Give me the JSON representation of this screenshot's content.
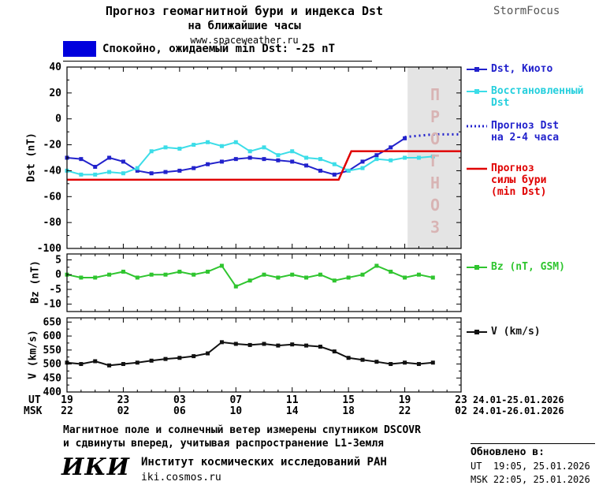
{
  "header": {
    "title_line1": "Прогноз геомагнитной бури и индекса Dst",
    "title_line2": "на ближайшие часы",
    "site": "www.spaceweather.ru",
    "brand": "StormFocus"
  },
  "status_legend": {
    "label": "Спокойно, ожидаемый min Dst: -25 nT",
    "color": "#0000dd"
  },
  "legend": {
    "dst_kyoto": "Dst, Киото",
    "recovered": "Восстановленный\nDst",
    "forecast_dst": "Прогноз Dst\nна 2-4 часа",
    "forecast_storm": "Прогноз\nсилы бури\n(min Dst)",
    "bz": "Bz (nT, GSM)",
    "v": "V (km/s)"
  },
  "axes": {
    "ut_label": "UT",
    "msk_label": "MSK",
    "ut_ticks": [
      "19",
      "23",
      "03",
      "07",
      "11",
      "15",
      "19",
      "23"
    ],
    "msk_ticks": [
      "22",
      "02",
      "06",
      "10",
      "14",
      "18",
      "22",
      "02"
    ],
    "ut_dates": "24.01-25.01.2026",
    "msk_dates": "24.01-26.01.2026"
  },
  "footer": {
    "note_line1": "Магнитное поле и солнечный ветер измерены спутником DSCOVR",
    "note_line2": "и сдвинуты вперед, учитывая распространение L1-Земля",
    "updated_label": "Обновлено в:",
    "updated_ut": "UT  19:05, 25.01.2026",
    "updated_msk": "MSK 22:05, 25.01.2026",
    "logo": "ИКИ",
    "institute": "Институт космических исследований РАН",
    "site": "iki.cosmos.ru"
  },
  "chart_data": [
    {
      "type": "line",
      "ylabel": "Dst (nT)",
      "ylim": [
        -100,
        40
      ],
      "yticks": [
        40,
        20,
        0,
        -20,
        -40,
        -60,
        -80,
        -100
      ],
      "xlim": [
        0,
        28
      ],
      "x_tick_step_hours": 4,
      "forecast_band": {
        "x0": 24.2,
        "x1": 28,
        "label": "ПРОГНОЗ",
        "fill": "#e4e4e4",
        "label_color": "#d8b4b4"
      },
      "series": [
        {
          "name": "Dst, Киото",
          "color": "#2222cc",
          "marker": "square",
          "line": "solid",
          "width": 2,
          "x": [
            0,
            1,
            2,
            3,
            4,
            5,
            6,
            7,
            8,
            9,
            10,
            11,
            12,
            13,
            14,
            15,
            16,
            17,
            18,
            19,
            20,
            21,
            22,
            23,
            24
          ],
          "y": [
            -30,
            -31,
            -37,
            -30,
            -33,
            -40,
            -42,
            -41,
            -40,
            -38,
            -35,
            -33,
            -31,
            -30,
            -31,
            -32,
            -33,
            -36,
            -40,
            -43,
            -40,
            -33,
            -28,
            -22,
            -15
          ]
        },
        {
          "name": "Восстановленный Dst",
          "color": "#3cdde8",
          "marker": "square",
          "line": "solid",
          "width": 2,
          "x": [
            0,
            1,
            2,
            3,
            4,
            5,
            6,
            7,
            8,
            9,
            10,
            11,
            12,
            13,
            14,
            15,
            16,
            17,
            18,
            19,
            20,
            21,
            22,
            23,
            24,
            25,
            26
          ],
          "y": [
            -40,
            -43,
            -43,
            -41,
            -42,
            -38,
            -25,
            -22,
            -23,
            -20,
            -18,
            -21,
            -18,
            -25,
            -22,
            -28,
            -25,
            -30,
            -31,
            -35,
            -40,
            -38,
            -31,
            -32,
            -30,
            -30,
            -29
          ]
        },
        {
          "name": "Прогноз Dst на 2-4 часа",
          "color": "#2222cc",
          "marker": "none",
          "line": "dotted",
          "width": 3,
          "x": [
            24,
            25,
            26,
            27,
            28
          ],
          "y": [
            -14,
            -13,
            -12,
            -12,
            -12
          ]
        },
        {
          "name": "Прогноз силы бури (min Dst)",
          "color": "#e00000",
          "marker": "none",
          "line": "solid",
          "width": 2.5,
          "x": [
            0,
            19.3,
            20.2,
            28
          ],
          "y": [
            -47,
            -47,
            -25,
            -25
          ]
        }
      ]
    },
    {
      "type": "line",
      "ylabel": "Bz (nT)",
      "ylim": [
        -12.5,
        7
      ],
      "yticks": [
        5,
        0,
        -5,
        -10
      ],
      "xlim": [
        0,
        28
      ],
      "series": [
        {
          "name": "Bz (nT, GSM)",
          "color": "#2fc52f",
          "marker": "square",
          "line": "solid",
          "width": 2,
          "x": [
            0,
            1,
            2,
            3,
            4,
            5,
            6,
            7,
            8,
            9,
            10,
            11,
            12,
            13,
            14,
            15,
            16,
            17,
            18,
            19,
            20,
            21,
            22,
            23,
            24,
            25,
            26
          ],
          "y": [
            0,
            -1,
            -1,
            0,
            1,
            -1,
            0,
            0,
            1,
            0,
            1,
            3,
            -4,
            -2,
            0,
            -1,
            0,
            -1,
            0,
            -2,
            -1,
            0,
            3,
            1,
            -1,
            0,
            -1
          ]
        }
      ]
    },
    {
      "type": "line",
      "ylabel": "V (km/s)",
      "ylim": [
        400,
        665
      ],
      "yticks": [
        650,
        600,
        550,
        500,
        450,
        400
      ],
      "xlim": [
        0,
        28
      ],
      "series": [
        {
          "name": "V (km/s)",
          "color": "#111111",
          "marker": "square",
          "line": "solid",
          "width": 2,
          "x": [
            0,
            1,
            2,
            3,
            4,
            5,
            6,
            7,
            8,
            9,
            10,
            11,
            12,
            13,
            14,
            15,
            16,
            17,
            18,
            19,
            20,
            21,
            22,
            23,
            24,
            25,
            26
          ],
          "y": [
            505,
            500,
            510,
            495,
            500,
            505,
            512,
            518,
            522,
            528,
            538,
            578,
            572,
            568,
            572,
            566,
            570,
            566,
            562,
            545,
            522,
            515,
            508,
            500,
            505,
            500,
            505
          ]
        }
      ]
    }
  ]
}
